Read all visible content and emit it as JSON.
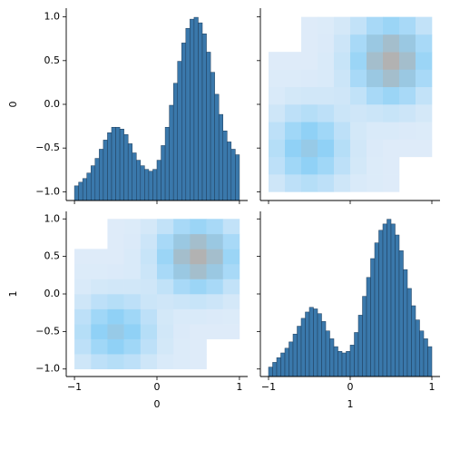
{
  "chart_data": [
    {
      "type": "histogram",
      "ylabel": "0",
      "color": "#3a78ab",
      "bins": [
        -1,
        -0.95,
        -0.9,
        -0.85,
        -0.8,
        -0.75,
        -0.7,
        -0.65,
        -0.6,
        -0.55,
        -0.5,
        -0.45,
        -0.4,
        -0.35,
        -0.3,
        -0.25,
        -0.2,
        -0.15,
        -0.1,
        -0.05,
        0,
        0.05,
        0.1,
        0.15,
        0.2,
        0.25,
        0.3,
        0.35,
        0.4,
        0.45,
        0.5,
        0.55,
        0.6,
        0.65,
        0.7,
        0.75,
        0.8,
        0.85,
        0.9,
        0.95,
        1
      ],
      "values": [
        0.08,
        0.1,
        0.12,
        0.15,
        0.19,
        0.23,
        0.28,
        0.33,
        0.37,
        0.4,
        0.4,
        0.39,
        0.36,
        0.31,
        0.26,
        0.22,
        0.19,
        0.17,
        0.16,
        0.17,
        0.22,
        0.3,
        0.4,
        0.52,
        0.64,
        0.76,
        0.86,
        0.94,
        0.99,
        1.0,
        0.97,
        0.91,
        0.81,
        0.7,
        0.58,
        0.47,
        0.38,
        0.32,
        0.28,
        0.25
      ],
      "countlim": [
        0,
        1.05
      ],
      "xlim": [
        -1.1,
        1.1
      ],
      "ylim": [
        -1.1,
        1.1
      ],
      "xticks": [
        -1,
        0,
        1
      ],
      "show_xticklabels": false,
      "yticks": [
        {
          "value": -1,
          "label": "−1.0"
        },
        {
          "value": -0.5,
          "label": "−0.5"
        },
        {
          "value": 0,
          "label": "0.0"
        },
        {
          "value": 0.5,
          "label": "0.5"
        },
        {
          "value": 1,
          "label": "1.0"
        }
      ],
      "show_yticklabels": true
    },
    {
      "type": "hist2d",
      "colors": [
        "#e3edf9",
        "#8fd1f6",
        "#b2b2b2"
      ],
      "clim": [
        0,
        103
      ],
      "xbins": [
        -1,
        -0.8,
        -0.6,
        -0.4,
        -0.2,
        0,
        0.2,
        0.4,
        0.6,
        0.8,
        1
      ],
      "ybins": [
        -1,
        -0.8,
        -0.6,
        -0.4,
        -0.2,
        0,
        0.2,
        0.4,
        0.6,
        0.8,
        1
      ],
      "values": [
        [
          13,
          23,
          28,
          23,
          13,
          6,
          4,
          3,
          0,
          0
        ],
        [
          23,
          41,
          51,
          41,
          23,
          10,
          4,
          3,
          0,
          0
        ],
        [
          28,
          51,
          63,
          51,
          28,
          11,
          5,
          3,
          3,
          3
        ],
        [
          23,
          41,
          51,
          41,
          23,
          10,
          6,
          6,
          5,
          4
        ],
        [
          13,
          23,
          28,
          23,
          15,
          12,
          15,
          17,
          14,
          9
        ],
        [
          6,
          10,
          11,
          11,
          12,
          21,
          36,
          44,
          36,
          20
        ],
        [
          4,
          4,
          5,
          6,
          15,
          36,
          67,
          83,
          67,
          36
        ],
        [
          3,
          3,
          3,
          6,
          17,
          44,
          83,
          103,
          83,
          44
        ],
        [
          0,
          0,
          3,
          5,
          14,
          36,
          67,
          83,
          67,
          36
        ],
        [
          0,
          0,
          3,
          4,
          9,
          20,
          36,
          44,
          36,
          20
        ]
      ],
      "xlim": [
        -1.1,
        1.1
      ],
      "ylim": [
        -1.1,
        1.1
      ],
      "xticks": [
        -1,
        0,
        1
      ],
      "show_xticklabels": false,
      "yticks": [
        -1,
        -0.5,
        0,
        0.5,
        1
      ],
      "show_yticklabels": false
    },
    {
      "type": "hist2d",
      "ylabel": "1",
      "xlabel": "0",
      "colors": [
        "#e3edf9",
        "#8fd1f6",
        "#b2b2b2"
      ],
      "clim": [
        0,
        103
      ],
      "xbins": [
        -1,
        -0.8,
        -0.6,
        -0.4,
        -0.2,
        0,
        0.2,
        0.4,
        0.6,
        0.8,
        1
      ],
      "ybins": [
        -1,
        -0.8,
        -0.6,
        -0.4,
        -0.2,
        0,
        0.2,
        0.4,
        0.6,
        0.8,
        1
      ],
      "values": [
        [
          13,
          23,
          28,
          23,
          13,
          6,
          4,
          3,
          0,
          0
        ],
        [
          23,
          41,
          51,
          41,
          23,
          10,
          4,
          3,
          0,
          0
        ],
        [
          28,
          51,
          63,
          51,
          28,
          11,
          5,
          3,
          3,
          3
        ],
        [
          23,
          41,
          51,
          41,
          23,
          10,
          6,
          6,
          5,
          4
        ],
        [
          13,
          23,
          28,
          23,
          15,
          12,
          15,
          17,
          14,
          9
        ],
        [
          6,
          10,
          11,
          11,
          12,
          21,
          36,
          44,
          36,
          20
        ],
        [
          4,
          4,
          5,
          6,
          15,
          36,
          67,
          83,
          67,
          36
        ],
        [
          3,
          3,
          3,
          6,
          17,
          44,
          83,
          103,
          83,
          44
        ],
        [
          0,
          0,
          3,
          5,
          14,
          36,
          67,
          83,
          67,
          36
        ],
        [
          0,
          0,
          3,
          4,
          9,
          20,
          36,
          44,
          36,
          20
        ]
      ],
      "xlim": [
        -1.1,
        1.1
      ],
      "ylim": [
        -1.1,
        1.1
      ],
      "xticks": [
        {
          "value": -1,
          "label": "−1"
        },
        0,
        1
      ],
      "show_xticklabels": true,
      "yticks": [
        {
          "value": -1,
          "label": "−1.0"
        },
        {
          "value": -0.5,
          "label": "−0.5"
        },
        {
          "value": 0,
          "label": "0.0"
        },
        {
          "value": 0.5,
          "label": "0.5"
        },
        {
          "value": 1,
          "label": "1.0"
        }
      ],
      "show_yticklabels": true
    },
    {
      "type": "histogram",
      "xlabel": "1",
      "color": "#3a78ab",
      "bins": [
        -1,
        -0.95,
        -0.9,
        -0.85,
        -0.8,
        -0.75,
        -0.7,
        -0.65,
        -0.6,
        -0.55,
        -0.5,
        -0.45,
        -0.4,
        -0.35,
        -0.3,
        -0.25,
        -0.2,
        -0.15,
        -0.1,
        -0.05,
        0,
        0.05,
        0.1,
        0.15,
        0.2,
        0.25,
        0.3,
        0.35,
        0.4,
        0.45,
        0.5,
        0.55,
        0.6,
        0.65,
        0.7,
        0.75,
        0.8,
        0.85,
        0.9,
        0.95,
        1
      ],
      "values": [
        0.06,
        0.09,
        0.12,
        0.15,
        0.18,
        0.22,
        0.27,
        0.32,
        0.37,
        0.41,
        0.44,
        0.43,
        0.4,
        0.35,
        0.29,
        0.24,
        0.19,
        0.16,
        0.15,
        0.16,
        0.2,
        0.28,
        0.39,
        0.51,
        0.63,
        0.75,
        0.85,
        0.93,
        0.97,
        1.0,
        0.97,
        0.9,
        0.8,
        0.68,
        0.56,
        0.45,
        0.36,
        0.29,
        0.24,
        0.19
      ],
      "countlim": [
        0,
        1.05
      ],
      "xlim": [
        -1.1,
        1.1
      ],
      "ylim": [
        -1.1,
        1.1
      ],
      "xticks": [
        {
          "value": -1,
          "label": "−1"
        },
        0,
        1
      ],
      "show_xticklabels": true,
      "yticks": [
        -1,
        -0.5,
        0,
        0.5,
        1
      ],
      "show_yticklabels": false
    }
  ]
}
